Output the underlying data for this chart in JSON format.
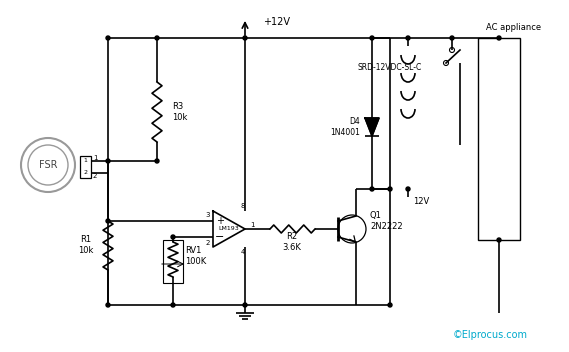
{
  "bg_color": "#ffffff",
  "line_color": "#000000",
  "cyan_color": "#00aacc",
  "copyright_text": "©Elprocus.com",
  "fsr_label": "FSR",
  "r1_label": "R1\n10k",
  "r2_label": "R2\n3.6K",
  "r3_label": "R3\n10k",
  "rv1_label": "RV1\n100K",
  "d4_label": "D4\n1N4001",
  "q1_label": "Q1\n2N2222",
  "relay_label": "SRD-12VDC-SL-C",
  "ac_label": "AC appliance",
  "vcc_label": "+12V",
  "v12_label": "12V",
  "opamp_label": "LM193",
  "pin3": "3",
  "pin2": "2",
  "pin8": "8",
  "pin1": "1",
  "pin4": "4",
  "fsr_pin1": "1",
  "fsr_pin2": "2"
}
